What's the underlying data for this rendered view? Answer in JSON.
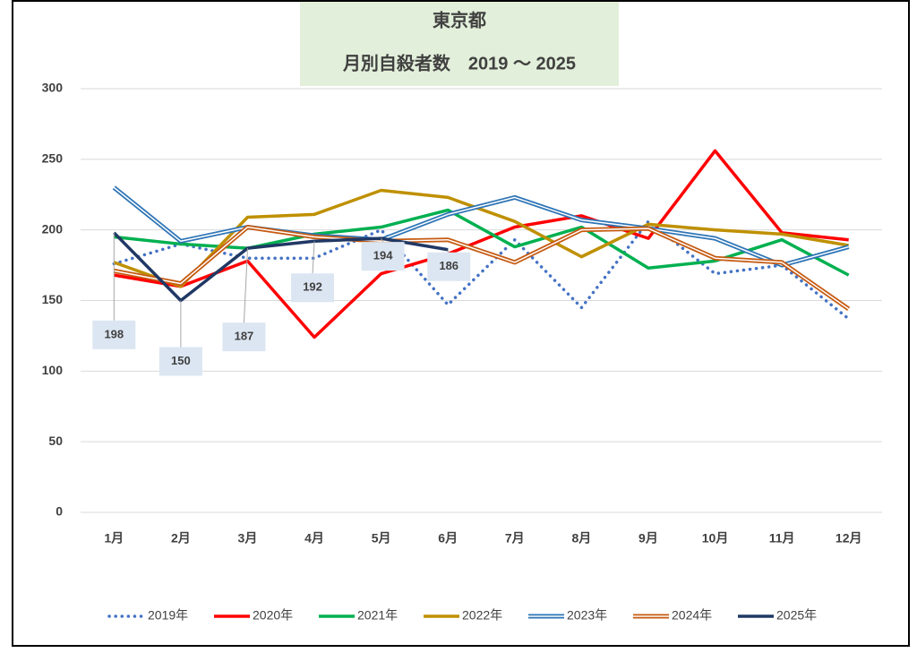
{
  "chart_data": {
    "type": "line",
    "title": "東京都",
    "subtitle": "月別自殺者数　2019 ～ 2025",
    "categories": [
      "1月",
      "2月",
      "3月",
      "4月",
      "5月",
      "6月",
      "7月",
      "8月",
      "9月",
      "10月",
      "11月",
      "12月"
    ],
    "ylim": [
      0,
      300
    ],
    "yticks": [
      0,
      50,
      100,
      150,
      200,
      250,
      300
    ],
    "grid": true,
    "legend": "bottom",
    "series": [
      {
        "name": "2019年",
        "color": "#4472c4",
        "line_style": "dotted",
        "values": [
          176,
          190,
          180,
          180,
          200,
          147,
          193,
          145,
          206,
          169,
          175,
          137
        ]
      },
      {
        "name": "2020年",
        "color": "#ff0000",
        "line_style": "solid",
        "values": [
          168,
          160,
          178,
          124,
          169,
          183,
          202,
          210,
          194,
          256,
          198,
          193
        ]
      },
      {
        "name": "2021年",
        "color": "#00b050",
        "line_style": "solid",
        "values": [
          195,
          190,
          187,
          197,
          202,
          214,
          188,
          202,
          173,
          178,
          193,
          168
        ]
      },
      {
        "name": "2022年",
        "color": "#bf9000",
        "line_style": "solid",
        "values": [
          177,
          160,
          209,
          211,
          228,
          223,
          206,
          181,
          204,
          200,
          197,
          189
        ]
      },
      {
        "name": "2023年",
        "color": "#2e75b6",
        "line_style": "double",
        "values": [
          230,
          192,
          202,
          196,
          193,
          211,
          223,
          207,
          201,
          194,
          175,
          188
        ]
      },
      {
        "name": "2024年",
        "color": "#c55a11",
        "line_style": "double",
        "values": [
          171,
          162,
          202,
          195,
          192,
          193,
          177,
          200,
          201,
          180,
          177,
          144
        ]
      },
      {
        "name": "2025年",
        "color": "#203864",
        "line_style": "solid",
        "data_labels": true,
        "values": [
          198,
          150,
          187,
          192,
          194,
          186,
          null,
          null,
          null,
          null,
          null,
          null
        ]
      }
    ]
  }
}
